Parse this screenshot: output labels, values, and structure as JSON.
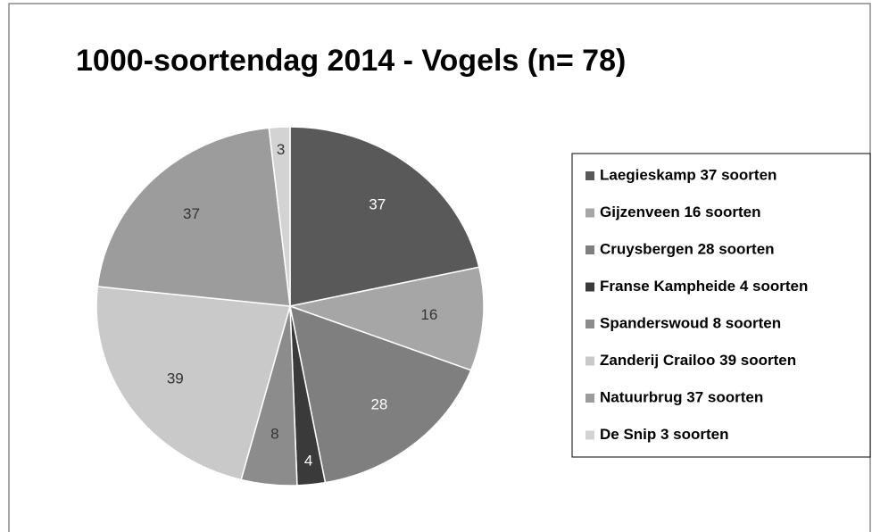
{
  "chart_data": {
    "type": "pie",
    "title": "1000-soortendag 2014 - Vogels (n= 78)",
    "categories": [
      "Laegieskamp 37 soorten",
      "Gijzenveen 16 soorten",
      "Cruysbergen 28 soorten",
      "Franse Kampheide 4 soorten",
      "Spanderswoud 8 soorten",
      "Zanderij Crailoo 39 soorten",
      "Natuurbrug 37 soorten",
      "De Snip 3 soorten"
    ],
    "values": [
      37,
      16,
      28,
      4,
      8,
      39,
      37,
      3
    ],
    "colors": [
      "#595959",
      "#a6a6a6",
      "#7f7f7f",
      "#3a3a3a",
      "#8c8c8c",
      "#c9c9c9",
      "#9c9c9c",
      "#d3d3d3"
    ],
    "legend": "right"
  }
}
